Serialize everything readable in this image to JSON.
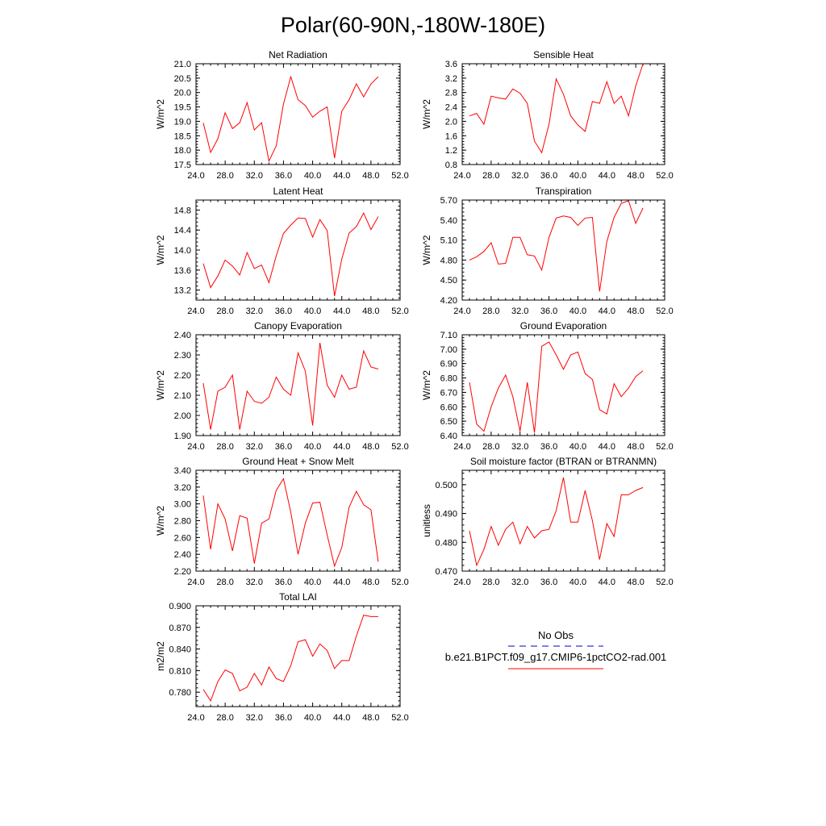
{
  "title": "Polar(60-90N,-180W-180E)",
  "colors": {
    "model": "#ff0000",
    "obs": "#0000cc",
    "frame": "#000000"
  },
  "x_ticks": [
    "24.0",
    "28.0",
    "32.0",
    "36.0",
    "40.0",
    "44.0",
    "48.0",
    "52.0"
  ],
  "legend": {
    "obs_label": "No Obs",
    "model_label": "b.e21.B1PCT.f09_g17.CMIP6-1pctCO2-rad.001"
  },
  "chart_data": [
    {
      "type": "line",
      "title": "Net Radiation",
      "ylabel": "W/m^2",
      "xlim": [
        24,
        52
      ],
      "ylim": [
        17.5,
        21.0
      ],
      "yticks": [
        "17.5",
        "18.0",
        "18.5",
        "19.0",
        "19.5",
        "20.0",
        "20.5",
        "21.0"
      ],
      "x": [
        25,
        26,
        27,
        28,
        29,
        30,
        31,
        32,
        33,
        34,
        35,
        36,
        37,
        38,
        39,
        40,
        41,
        42,
        43,
        44,
        45,
        46,
        47,
        48,
        49
      ],
      "series": [
        {
          "values": [
            18.95,
            17.92,
            18.4,
            19.3,
            18.75,
            18.95,
            19.65,
            18.7,
            18.95,
            17.62,
            18.15,
            19.6,
            20.55,
            19.75,
            19.55,
            19.15,
            19.35,
            19.5,
            17.72,
            19.35,
            19.75,
            20.3,
            19.85,
            20.3,
            20.55
          ]
        }
      ]
    },
    {
      "type": "line",
      "title": "Sensible Heat",
      "ylabel": "W/m^2",
      "xlim": [
        24,
        52
      ],
      "ylim": [
        0.8,
        3.6
      ],
      "yticks": [
        "0.8",
        "1.2",
        "1.6",
        "2.0",
        "2.4",
        "2.8",
        "3.2",
        "3.6"
      ],
      "x": [
        25,
        26,
        27,
        28,
        29,
        30,
        31,
        32,
        33,
        34,
        35,
        36,
        37,
        38,
        39,
        40,
        41,
        42,
        43,
        44,
        45,
        46,
        47,
        48,
        49
      ],
      "series": [
        {
          "values": [
            2.15,
            2.22,
            1.92,
            2.7,
            2.65,
            2.62,
            2.9,
            2.78,
            2.5,
            1.45,
            1.13,
            1.92,
            3.18,
            2.75,
            2.15,
            1.9,
            1.72,
            2.55,
            2.5,
            3.1,
            2.5,
            2.7,
            2.15,
            2.98,
            3.6
          ]
        }
      ]
    },
    {
      "type": "line",
      "title": "Latent Heat",
      "ylabel": "W/m^2",
      "xlim": [
        24,
        52
      ],
      "ylim": [
        13.0,
        15.0
      ],
      "yticks": [
        "13.2",
        "13.6",
        "14.0",
        "14.4",
        "14.8"
      ],
      "x": [
        25,
        26,
        27,
        28,
        29,
        30,
        31,
        32,
        33,
        34,
        35,
        36,
        37,
        38,
        39,
        40,
        41,
        42,
        43,
        44,
        45,
        46,
        47,
        48,
        49
      ],
      "series": [
        {
          "values": [
            13.73,
            13.25,
            13.48,
            13.8,
            13.68,
            13.5,
            13.95,
            13.63,
            13.7,
            13.35,
            13.88,
            14.33,
            14.5,
            14.64,
            14.63,
            14.26,
            14.61,
            14.39,
            13.08,
            13.82,
            14.34,
            14.47,
            14.74,
            14.41,
            14.67
          ]
        }
      ]
    },
    {
      "type": "line",
      "title": "Transpiration",
      "ylabel": "W/m^2",
      "xlim": [
        24,
        52
      ],
      "ylim": [
        4.2,
        5.7
      ],
      "yticks": [
        "4.20",
        "4.50",
        "4.80",
        "5.10",
        "5.40",
        "5.70"
      ],
      "x": [
        25,
        26,
        27,
        28,
        29,
        30,
        31,
        32,
        33,
        34,
        35,
        36,
        37,
        38,
        39,
        40,
        41,
        42,
        43,
        44,
        45,
        46,
        47,
        48,
        49
      ],
      "series": [
        {
          "values": [
            4.8,
            4.85,
            4.93,
            5.06,
            4.74,
            4.75,
            5.14,
            5.14,
            4.88,
            4.86,
            4.65,
            5.14,
            5.43,
            5.46,
            5.44,
            5.32,
            5.43,
            5.44,
            4.33,
            5.08,
            5.44,
            5.65,
            5.69,
            5.35,
            5.58
          ]
        }
      ]
    },
    {
      "type": "line",
      "title": "Canopy Evaporation",
      "ylabel": "W/m^2",
      "xlim": [
        24,
        52
      ],
      "ylim": [
        1.9,
        2.4
      ],
      "yticks": [
        "1.90",
        "2.00",
        "2.10",
        "2.20",
        "2.30",
        "2.40"
      ],
      "x": [
        25,
        26,
        27,
        28,
        29,
        30,
        31,
        32,
        33,
        34,
        35,
        36,
        37,
        38,
        39,
        40,
        41,
        42,
        43,
        44,
        45,
        46,
        47,
        48,
        49
      ],
      "series": [
        {
          "values": [
            2.16,
            1.93,
            2.12,
            2.14,
            2.2,
            1.93,
            2.12,
            2.07,
            2.06,
            2.09,
            2.19,
            2.13,
            2.1,
            2.31,
            2.22,
            1.95,
            2.36,
            2.15,
            2.09,
            2.2,
            2.13,
            2.14,
            2.32,
            2.24,
            2.23
          ]
        }
      ]
    },
    {
      "type": "line",
      "title": "Ground Evaporation",
      "ylabel": "W/m^2",
      "xlim": [
        24,
        52
      ],
      "ylim": [
        6.4,
        7.1
      ],
      "yticks": [
        "6.40",
        "6.50",
        "6.60",
        "6.70",
        "6.80",
        "6.90",
        "7.00",
        "7.10"
      ],
      "x": [
        25,
        26,
        27,
        28,
        29,
        30,
        31,
        32,
        33,
        34,
        35,
        36,
        37,
        38,
        39,
        40,
        41,
        42,
        43,
        44,
        45,
        46,
        47,
        48,
        49
      ],
      "series": [
        {
          "values": [
            6.77,
            6.48,
            6.43,
            6.6,
            6.73,
            6.82,
            6.67,
            6.43,
            6.77,
            6.42,
            7.02,
            7.05,
            6.96,
            6.86,
            6.96,
            6.98,
            6.83,
            6.79,
            6.58,
            6.55,
            6.76,
            6.67,
            6.73,
            6.81,
            6.85
          ]
        }
      ]
    },
    {
      "type": "line",
      "title": "Ground Heat + Snow Melt",
      "ylabel": "W/m^2",
      "xlim": [
        24,
        52
      ],
      "ylim": [
        2.2,
        3.4
      ],
      "yticks": [
        "2.20",
        "2.40",
        "2.60",
        "2.80",
        "3.00",
        "3.20",
        "3.40"
      ],
      "x": [
        25,
        26,
        27,
        28,
        29,
        30,
        31,
        32,
        33,
        34,
        35,
        36,
        37,
        38,
        39,
        40,
        41,
        42,
        43,
        44,
        45,
        46,
        47,
        48,
        49
      ],
      "series": [
        {
          "values": [
            3.1,
            2.46,
            3.0,
            2.82,
            2.44,
            2.86,
            2.83,
            2.29,
            2.77,
            2.82,
            3.16,
            3.3,
            2.9,
            2.4,
            2.77,
            3.01,
            3.02,
            2.63,
            2.26,
            2.48,
            2.96,
            3.15,
            2.99,
            2.93,
            2.31
          ]
        }
      ]
    },
    {
      "type": "line",
      "title": "Soil moisture factor (BTRAN or BTRANMN)",
      "ylabel": "unitless",
      "xlim": [
        24,
        52
      ],
      "ylim": [
        0.47,
        0.505
      ],
      "yticks": [
        "0.470",
        "0.480",
        "0.490",
        "0.500"
      ],
      "x": [
        25,
        26,
        27,
        28,
        29,
        30,
        31,
        32,
        33,
        34,
        35,
        36,
        37,
        38,
        39,
        40,
        41,
        42,
        43,
        44,
        45,
        46,
        47,
        48,
        49
      ],
      "series": [
        {
          "values": [
            0.484,
            0.472,
            0.4775,
            0.4855,
            0.479,
            0.4845,
            0.487,
            0.4795,
            0.4855,
            0.4815,
            0.484,
            0.4845,
            0.491,
            0.5025,
            0.487,
            0.487,
            0.498,
            0.4875,
            0.474,
            0.4865,
            0.482,
            0.4965,
            0.4965,
            0.498,
            0.499
          ]
        }
      ]
    },
    {
      "type": "line",
      "title": "Total LAI",
      "ylabel": "m2/m2",
      "xlim": [
        24,
        52
      ],
      "ylim": [
        0.76,
        0.9
      ],
      "yticks": [
        "0.780",
        "0.810",
        "0.840",
        "0.870",
        "0.900"
      ],
      "x": [
        25,
        26,
        27,
        28,
        29,
        30,
        31,
        32,
        33,
        34,
        35,
        36,
        37,
        38,
        39,
        40,
        41,
        42,
        43,
        44,
        45,
        46,
        47,
        48,
        49
      ],
      "series": [
        {
          "values": [
            0.784,
            0.768,
            0.795,
            0.811,
            0.806,
            0.782,
            0.787,
            0.806,
            0.79,
            0.815,
            0.799,
            0.795,
            0.817,
            0.85,
            0.853,
            0.83,
            0.847,
            0.838,
            0.813,
            0.824,
            0.824,
            0.858,
            0.887,
            0.885,
            0.885
          ]
        }
      ]
    }
  ]
}
